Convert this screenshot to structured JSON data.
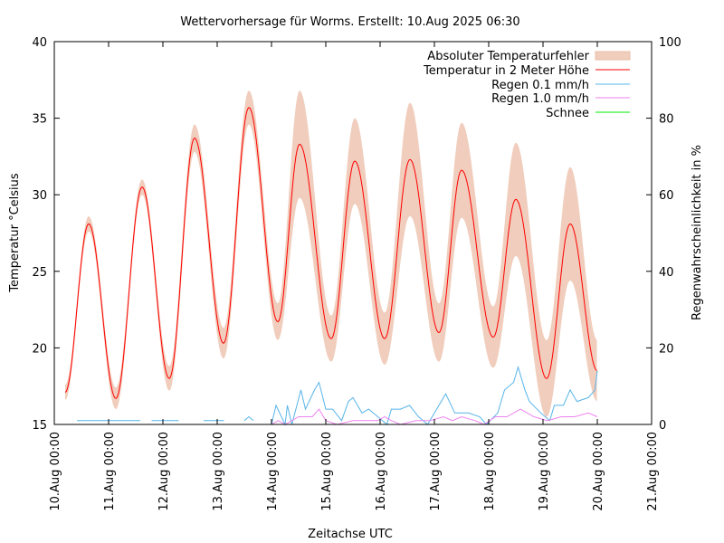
{
  "chart_data": {
    "type": "line",
    "title": "Wettervorhersage für Worms. Erstellt: 10.Aug 2025 06:30",
    "xlabel": "Zeitachse UTC",
    "ylabel": "Temperatur °Celsius",
    "y2label": "Regenwahrscheinlichkeit in %",
    "ylim": [
      15,
      40
    ],
    "y2lim": [
      0,
      100
    ],
    "xlim_hours_from_start": [
      0,
      264
    ],
    "x_tick_labels": [
      "10.Aug 00:00",
      "11.Aug 00:00",
      "12.Aug 00:00",
      "13.Aug 00:00",
      "14.Aug 00:00",
      "15.Aug 00:00",
      "16.Aug 00:00",
      "17.Aug 00:00",
      "18.Aug 00:00",
      "19.Aug 00:00",
      "20.Aug 00:00",
      "21.Aug 00:00"
    ],
    "y_ticks": [
      15,
      20,
      25,
      30,
      35,
      40
    ],
    "y2_ticks": [
      0,
      20,
      40,
      60,
      80,
      100
    ],
    "legend_position": "top-right",
    "legend": [
      "Absoluter Temperaturfehler",
      "Temperatur in 2 Meter Höhe",
      "Regen 0.1 mm/h",
      "Regen 1.0 mm/h",
      "Schnee"
    ],
    "colors": {
      "band": "#f0cdbc",
      "temp": "#ff0000",
      "rain01": "#56b4e9",
      "rain10": "#ee82ee",
      "snow": "#00ee00"
    },
    "temperature_keypoints": {
      "hours": [
        4.8,
        15.2,
        27.2,
        38.8,
        50.8,
        62,
        74.8,
        86,
        98.8,
        108.4,
        122.4,
        132.8,
        146,
        157.2,
        170,
        180,
        194,
        204,
        217.6,
        228,
        240
      ],
      "celsius": [
        17.1,
        28.1,
        16.7,
        30.5,
        18.0,
        33.7,
        20.3,
        35.7,
        21.7,
        33.3,
        20.6,
        32.2,
        20.6,
        32.3,
        21.0,
        31.6,
        20.7,
        29.7,
        18.0,
        28.1,
        18.5
      ],
      "abs_error": [
        0.5,
        0.5,
        0.7,
        0.5,
        0.8,
        0.9,
        1.0,
        1.1,
        1.2,
        3.5,
        1.5,
        2.8,
        1.7,
        3.7,
        1.9,
        3.1,
        2.0,
        3.7,
        2.5,
        3.7,
        2.0
      ]
    },
    "rain_0_1_percent": {
      "early_segments": [
        [
          [
            10,
            1
          ],
          [
            38,
            1
          ]
        ],
        [
          [
            43,
            1
          ],
          [
            55,
            1
          ]
        ],
        [
          [
            66,
            1
          ],
          [
            75,
            1
          ]
        ],
        [
          [
            84,
            1
          ],
          [
            86,
            2
          ],
          [
            88,
            1
          ]
        ]
      ],
      "hours": [
        96,
        98,
        102,
        103,
        105,
        109,
        111,
        115,
        117,
        120,
        123,
        127,
        130,
        132,
        136,
        139,
        143,
        147,
        149,
        153,
        157,
        161,
        165,
        169,
        173,
        177,
        183,
        188,
        191,
        196,
        199,
        203,
        205,
        208,
        210,
        215,
        219,
        221,
        225,
        228,
        231,
        236,
        239,
        240
      ],
      "values": [
        0,
        5,
        0,
        5,
        0,
        9,
        4,
        9,
        11,
        4,
        4,
        1,
        6,
        7,
        3,
        4,
        2,
        0,
        4,
        4,
        5,
        2,
        0,
        4,
        8,
        3,
        3,
        2,
        0,
        3,
        9,
        11,
        15,
        9,
        6,
        3,
        1,
        5,
        5,
        9,
        6,
        7,
        9,
        14
      ]
    },
    "rain_1_0_percent": {
      "hours": [
        96,
        99,
        102,
        108,
        114,
        117,
        120,
        125,
        132,
        143,
        146,
        149,
        153,
        160,
        166,
        172,
        176,
        180,
        186,
        190,
        195,
        200,
        206,
        212,
        218,
        224,
        230,
        236,
        240
      ],
      "values": [
        0,
        1,
        0,
        2,
        2,
        4,
        1,
        0,
        1,
        1,
        2,
        1,
        0,
        1,
        1,
        2,
        1,
        2,
        1,
        0,
        2,
        2,
        4,
        2,
        1,
        2,
        2,
        3,
        2
      ]
    }
  }
}
